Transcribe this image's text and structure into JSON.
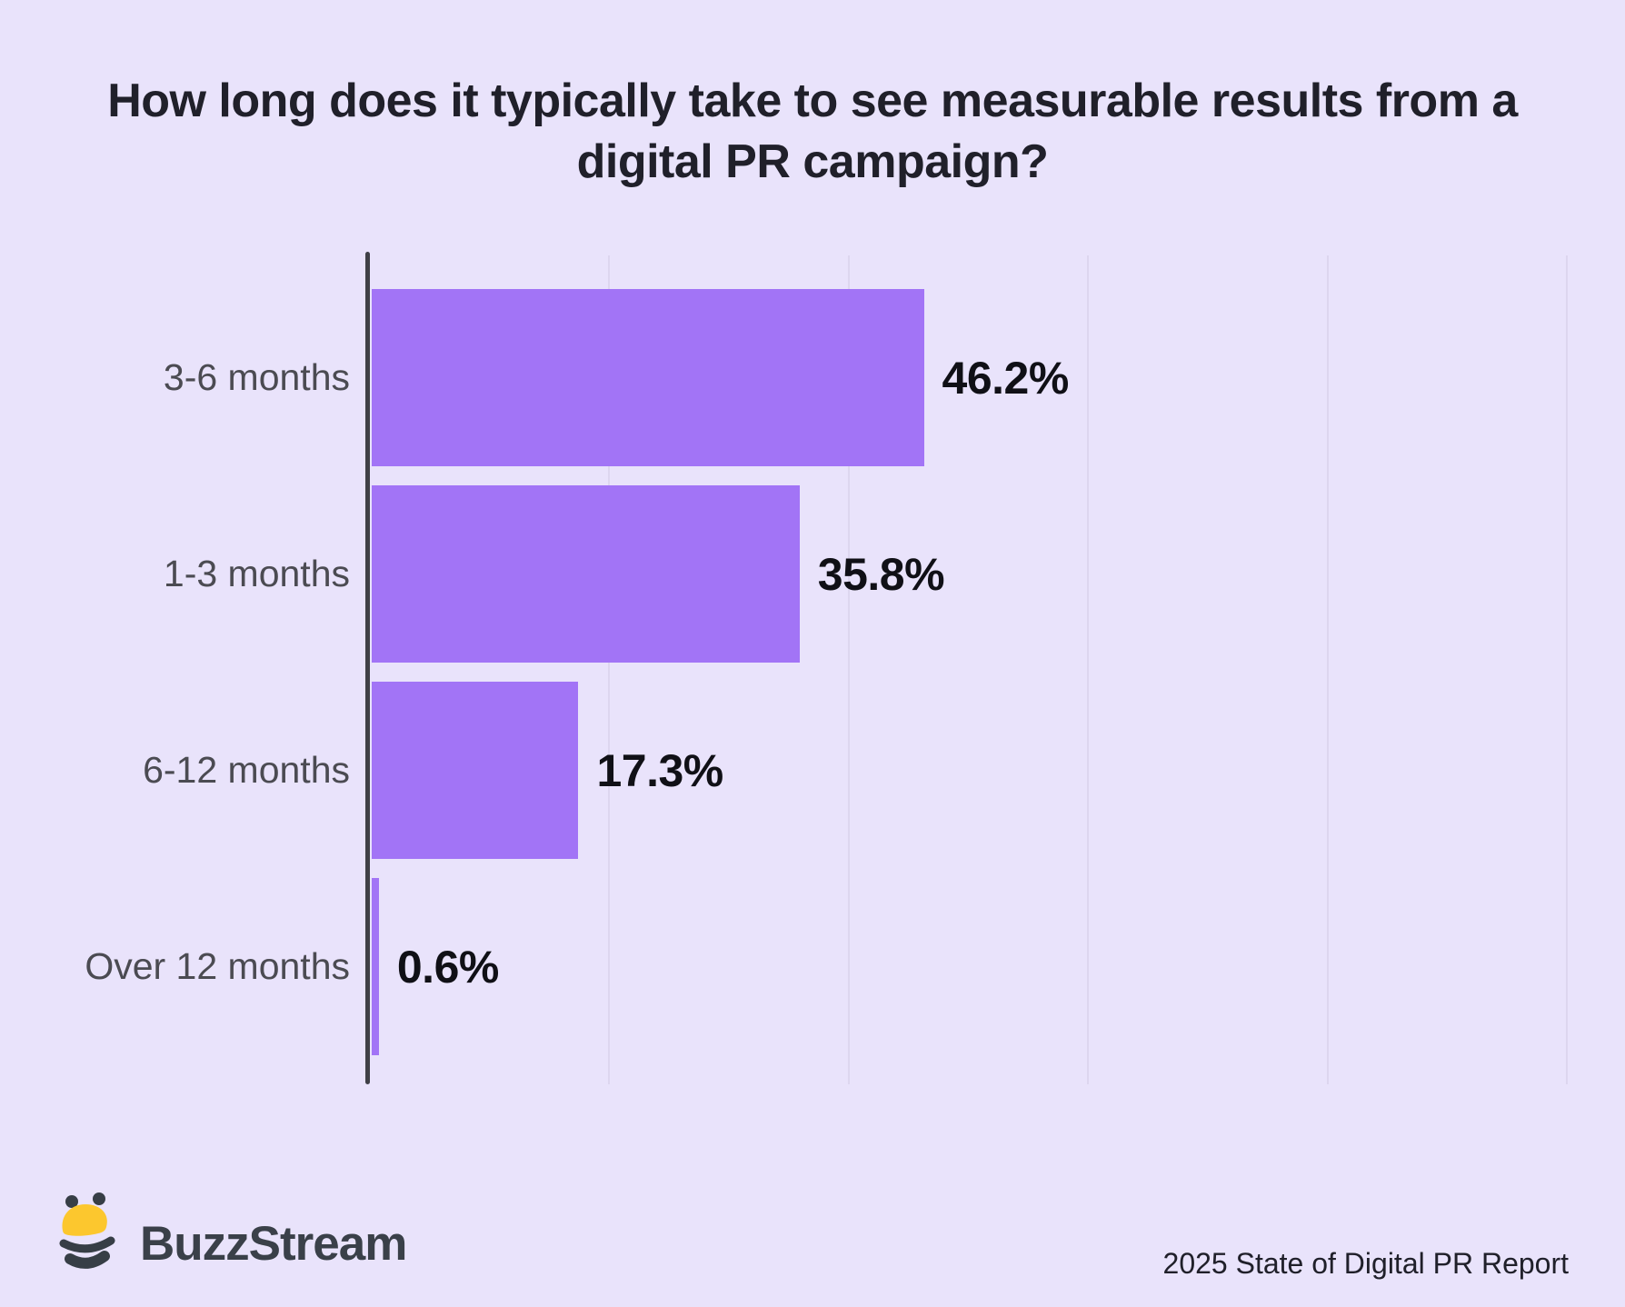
{
  "title": "How long does it typically take to see measurable results from a digital PR campaign?",
  "chart_data": {
    "type": "bar",
    "orientation": "horizontal",
    "title": "How long does it typically take to see measurable results from a digital PR campaign?",
    "categories": [
      "3-6 months",
      "1-3 months",
      "6-12 months",
      "Over 12 months"
    ],
    "values": [
      46.2,
      35.8,
      17.3,
      0.6
    ],
    "value_labels": [
      "46.2%",
      "35.8%",
      "17.3%",
      "0.6%"
    ],
    "xlabel": "",
    "ylabel": "",
    "xlim": [
      0,
      100
    ],
    "gridlines": [
      20,
      40,
      60,
      80,
      100
    ],
    "grid": "vertical",
    "legend": "none",
    "bar_color": "#a274f6",
    "axis_color": "#3f3f46"
  },
  "footer": {
    "brand": "BuzzStream",
    "bee_icon": "buzzstream-bee-icon",
    "report_label": "2025 State of Digital PR Report"
  },
  "colors": {
    "background": "#e9e3fb",
    "bar": "#a274f6",
    "gridline": "#ddd6ef",
    "axis": "#3f3f46",
    "title_text": "#20202a",
    "category_text": "#4b4b52",
    "value_text": "#101016",
    "brand_text": "#3a4049",
    "bee_yellow": "#fcc72e",
    "bee_dark": "#373e46"
  }
}
